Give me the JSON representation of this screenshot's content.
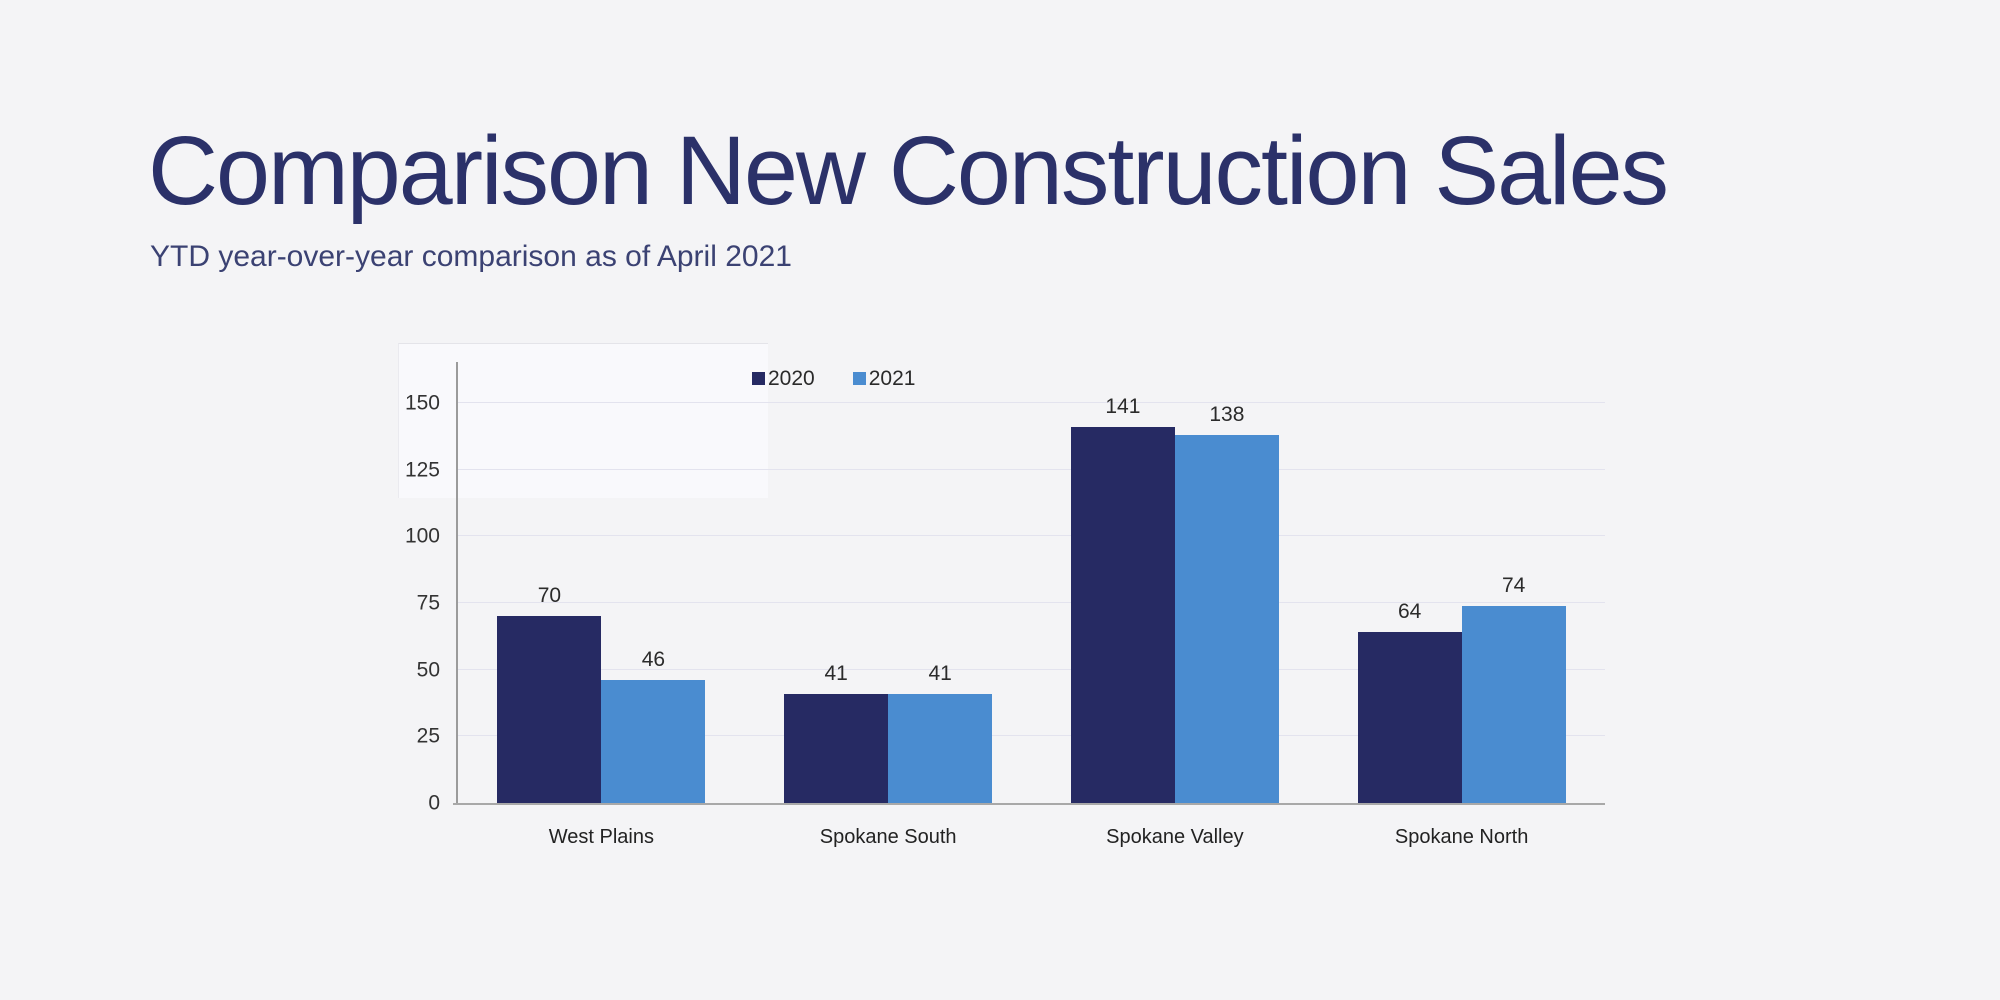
{
  "header": {
    "title": "Comparison New Construction Sales",
    "subtitle": "YTD year-over-year comparison as of April 2021"
  },
  "colors": {
    "background": "#f4f4f6",
    "title_text": "#2b3169",
    "subtitle_text": "#3b4273",
    "gridline": "#e3e3ee",
    "axis_line": "#9b9b9b",
    "value_label_text": "#2b2b2b",
    "series_2020": "#262a63",
    "series_2021": "#4a8cd0"
  },
  "chart_data": {
    "type": "bar",
    "title": "",
    "xlabel": "",
    "ylabel": "",
    "categories": [
      "West Plains",
      "Spokane South",
      "Spokane Valley",
      "Spokane North"
    ],
    "series": [
      {
        "name": "2020",
        "color": "#262a63",
        "values": [
          70,
          41,
          141,
          64
        ]
      },
      {
        "name": "2021",
        "color": "#4a8cd0",
        "values": [
          46,
          41,
          138,
          74
        ]
      }
    ],
    "ylim": [
      0,
      150
    ],
    "yticks": [
      0,
      25,
      50,
      75,
      100,
      125,
      150
    ],
    "grid": "horizontal",
    "legend_position": "top-center",
    "bar_value_labels": true
  }
}
